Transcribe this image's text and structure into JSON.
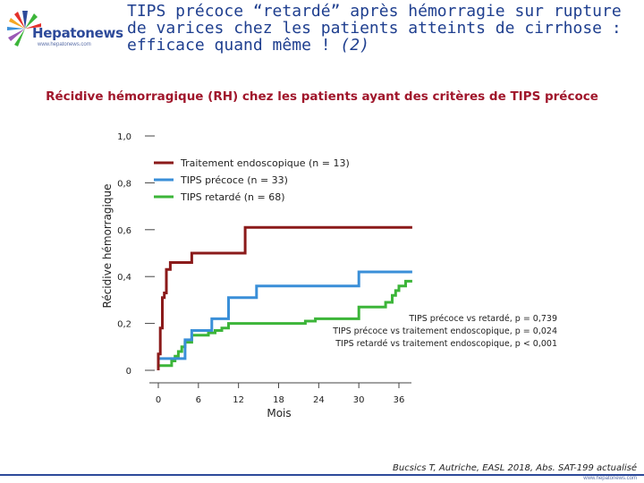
{
  "header": {
    "logo_text": "Hepatonews",
    "logo_url": "www.hepatonews.com",
    "title_main": "TIPS précoce “retardé” après hémorragie sur rupture de varices chez les patients atteints de cirrhose : efficace quand même !",
    "title_number": "(2)"
  },
  "chart_data": {
    "type": "line",
    "title": "Récidive hémorragique (RH) chez les patients ayant des critères de TIPS précoce",
    "xlabel": "Mois",
    "ylabel": "Récidive hémorragique",
    "xlim": [
      0,
      36
    ],
    "ylim": [
      0,
      1
    ],
    "x_ticks": [
      0,
      6,
      12,
      18,
      24,
      30,
      36
    ],
    "x_tick_labels": [
      "0",
      "6",
      "12",
      "18",
      "24",
      "30",
      "36"
    ],
    "y_ticks": [
      0,
      0.2,
      0.4,
      0.6,
      0.8,
      1.0
    ],
    "y_tick_labels": [
      "0",
      "0,2",
      "0,4",
      "0,6",
      "0,8",
      "1,0"
    ],
    "step": true,
    "legend_position": "top-left",
    "series": [
      {
        "name": "Traitement endoscopique (n = 13)",
        "color": "#8b1a1a",
        "points": [
          [
            0,
            0
          ],
          [
            0,
            0.07
          ],
          [
            0.3,
            0.07
          ],
          [
            0.3,
            0.18
          ],
          [
            0.6,
            0.18
          ],
          [
            0.6,
            0.31
          ],
          [
            0.9,
            0.31
          ],
          [
            0.9,
            0.33
          ],
          [
            1.2,
            0.33
          ],
          [
            1.2,
            0.43
          ],
          [
            1.8,
            0.43
          ],
          [
            1.8,
            0.46
          ],
          [
            5,
            0.46
          ],
          [
            5,
            0.5
          ],
          [
            13,
            0.5
          ],
          [
            13,
            0.61
          ],
          [
            38,
            0.61
          ]
        ]
      },
      {
        "name": "TIPS précoce (n = 33)",
        "color": "#3a8fd8",
        "points": [
          [
            0,
            0
          ],
          [
            0,
            0.05
          ],
          [
            4,
            0.05
          ],
          [
            4,
            0.13
          ],
          [
            5,
            0.13
          ],
          [
            5,
            0.17
          ],
          [
            8,
            0.17
          ],
          [
            8,
            0.22
          ],
          [
            10.5,
            0.22
          ],
          [
            10.5,
            0.31
          ],
          [
            14.7,
            0.31
          ],
          [
            14.7,
            0.36
          ],
          [
            30,
            0.36
          ],
          [
            30,
            0.42
          ],
          [
            38,
            0.42
          ]
        ]
      },
      {
        "name": "TIPS retardé (n = 68)",
        "color": "#3cb539",
        "points": [
          [
            0,
            0
          ],
          [
            0,
            0.02
          ],
          [
            2,
            0.02
          ],
          [
            2,
            0.04
          ],
          [
            2.5,
            0.04
          ],
          [
            2.5,
            0.06
          ],
          [
            3,
            0.06
          ],
          [
            3,
            0.08
          ],
          [
            3.5,
            0.08
          ],
          [
            3.5,
            0.1
          ],
          [
            4,
            0.1
          ],
          [
            4,
            0.12
          ],
          [
            5,
            0.12
          ],
          [
            5,
            0.15
          ],
          [
            7.5,
            0.15
          ],
          [
            7.5,
            0.16
          ],
          [
            8.5,
            0.16
          ],
          [
            8.5,
            0.17
          ],
          [
            9.5,
            0.17
          ],
          [
            9.5,
            0.18
          ],
          [
            10.5,
            0.18
          ],
          [
            10.5,
            0.2
          ],
          [
            22,
            0.2
          ],
          [
            22,
            0.21
          ],
          [
            23.5,
            0.21
          ],
          [
            23.5,
            0.22
          ],
          [
            30,
            0.22
          ],
          [
            30,
            0.27
          ],
          [
            34,
            0.27
          ],
          [
            34,
            0.29
          ],
          [
            35,
            0.29
          ],
          [
            35,
            0.32
          ],
          [
            35.5,
            0.32
          ],
          [
            35.5,
            0.34
          ],
          [
            36,
            0.34
          ],
          [
            36,
            0.36
          ],
          [
            37,
            0.36
          ],
          [
            37,
            0.38
          ],
          [
            38,
            0.38
          ]
        ]
      }
    ],
    "annotations": [
      "TIPS précoce vs retardé, p = 0,739",
      "TIPS précoce vs traitement endoscopique, p = 0,024",
      "TIPS retardé vs traitement endoscopique, p < 0,001"
    ]
  },
  "reference": "Bucsics T, Autriche, EASL 2018, Abs. SAT-199 actualisé",
  "footer_url": "www.hepatonews.com"
}
